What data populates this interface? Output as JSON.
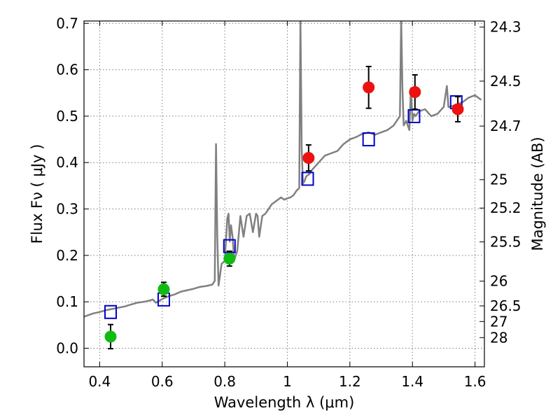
{
  "chart_data": {
    "type": "scatter",
    "xlabel": "Wavelength  λ (μm)",
    "ylabel": "Flux  Fν  ( μJy )",
    "ylabel_right": "Magnitude (AB)",
    "xlim": [
      0.35,
      1.63
    ],
    "ylim": [
      -0.04,
      0.705
    ],
    "grid": true,
    "x_ticks": [
      {
        "value": 0.4,
        "label": "0.4"
      },
      {
        "value": 0.6,
        "label": "0.6"
      },
      {
        "value": 0.8,
        "label": "0.8"
      },
      {
        "value": 1.0,
        "label": "1"
      },
      {
        "value": 1.2,
        "label": "1.2"
      },
      {
        "value": 1.4,
        "label": "1.4"
      },
      {
        "value": 1.6,
        "label": "1.6"
      }
    ],
    "y_ticks": [
      {
        "value": 0.0,
        "label": "0.0"
      },
      {
        "value": 0.1,
        "label": "0.1"
      },
      {
        "value": 0.2,
        "label": "0.2"
      },
      {
        "value": 0.3,
        "label": "0.3"
      },
      {
        "value": 0.4,
        "label": "0.4"
      },
      {
        "value": 0.5,
        "label": "0.5"
      },
      {
        "value": 0.6,
        "label": "0.6"
      },
      {
        "value": 0.7,
        "label": "0.7"
      }
    ],
    "right_ticks": [
      {
        "value": 24.3,
        "label": "24.3"
      },
      {
        "value": 24.5,
        "label": "24.5"
      },
      {
        "value": 24.7,
        "label": "24.7"
      },
      {
        "value": 25.0,
        "label": "25"
      },
      {
        "value": 25.2,
        "label": "25.2"
      },
      {
        "value": 25.5,
        "label": "25.5"
      },
      {
        "value": 26.0,
        "label": "26"
      },
      {
        "value": 26.5,
        "label": "26.5"
      },
      {
        "value": 27.0,
        "label": "27"
      },
      {
        "value": 28.0,
        "label": "28"
      }
    ],
    "series": [
      {
        "type": "line",
        "color": "#808080",
        "x": [
          0.35,
          0.38,
          0.4,
          0.42,
          0.45,
          0.48,
          0.5,
          0.52,
          0.55,
          0.57,
          0.58,
          0.6,
          0.62,
          0.64,
          0.66,
          0.68,
          0.7,
          0.72,
          0.74,
          0.76,
          0.768,
          0.772,
          0.776,
          0.78,
          0.79,
          0.8,
          0.808,
          0.812,
          0.816,
          0.82,
          0.825,
          0.83,
          0.84,
          0.85,
          0.86,
          0.87,
          0.88,
          0.89,
          0.9,
          0.905,
          0.91,
          0.92,
          0.93,
          0.94,
          0.95,
          0.96,
          0.97,
          0.98,
          0.99,
          1.0,
          1.01,
          1.02,
          1.03,
          1.038,
          1.042,
          1.046,
          1.05,
          1.055,
          1.06,
          1.07,
          1.08,
          1.1,
          1.12,
          1.14,
          1.16,
          1.18,
          1.2,
          1.22,
          1.24,
          1.26,
          1.28,
          1.3,
          1.32,
          1.34,
          1.36,
          1.364,
          1.368,
          1.372,
          1.38,
          1.39,
          1.395,
          1.4,
          1.405,
          1.41,
          1.42,
          1.44,
          1.46,
          1.48,
          1.5,
          1.51,
          1.515,
          1.52,
          1.54,
          1.56,
          1.58,
          1.6,
          1.62
        ],
        "y": [
          0.068,
          0.075,
          0.078,
          0.082,
          0.086,
          0.09,
          0.094,
          0.098,
          0.101,
          0.105,
          0.098,
          0.106,
          0.112,
          0.116,
          0.122,
          0.125,
          0.128,
          0.132,
          0.134,
          0.137,
          0.145,
          0.44,
          0.24,
          0.135,
          0.182,
          0.188,
          0.28,
          0.29,
          0.23,
          0.265,
          0.24,
          0.19,
          0.21,
          0.285,
          0.24,
          0.285,
          0.29,
          0.25,
          0.29,
          0.285,
          0.24,
          0.285,
          0.29,
          0.3,
          0.31,
          0.315,
          0.32,
          0.325,
          0.32,
          0.323,
          0.325,
          0.33,
          0.34,
          0.345,
          0.71,
          0.43,
          0.355,
          0.36,
          0.37,
          0.375,
          0.385,
          0.4,
          0.415,
          0.42,
          0.425,
          0.44,
          0.45,
          0.455,
          0.462,
          0.465,
          0.46,
          0.465,
          0.47,
          0.48,
          0.5,
          0.71,
          0.56,
          0.48,
          0.49,
          0.47,
          0.56,
          0.49,
          0.505,
          0.5,
          0.51,
          0.515,
          0.5,
          0.505,
          0.52,
          0.565,
          0.52,
          0.52,
          0.525,
          0.53,
          0.54,
          0.545,
          0.535
        ]
      },
      {
        "type": "scatter",
        "marker": "square",
        "color": "#0000cc",
        "x": [
          0.435,
          0.605,
          0.815,
          1.065,
          1.26,
          1.405,
          1.54
        ],
        "y": [
          0.078,
          0.105,
          0.22,
          0.365,
          0.45,
          0.5,
          0.53
        ]
      },
      {
        "type": "scatter",
        "marker": "circle",
        "color": "#11bb11",
        "x": [
          0.435,
          0.605,
          0.815
        ],
        "y": [
          0.025,
          0.127,
          0.193
        ],
        "err": [
          0.026,
          0.015,
          0.016
        ]
      },
      {
        "type": "scatter",
        "marker": "circle",
        "color": "#ee1111",
        "x": [
          1.068,
          1.26,
          1.408,
          1.545
        ],
        "y": [
          0.41,
          0.562,
          0.552,
          0.515
        ],
        "err": [
          0.028,
          0.045,
          0.037,
          0.027
        ]
      }
    ]
  }
}
